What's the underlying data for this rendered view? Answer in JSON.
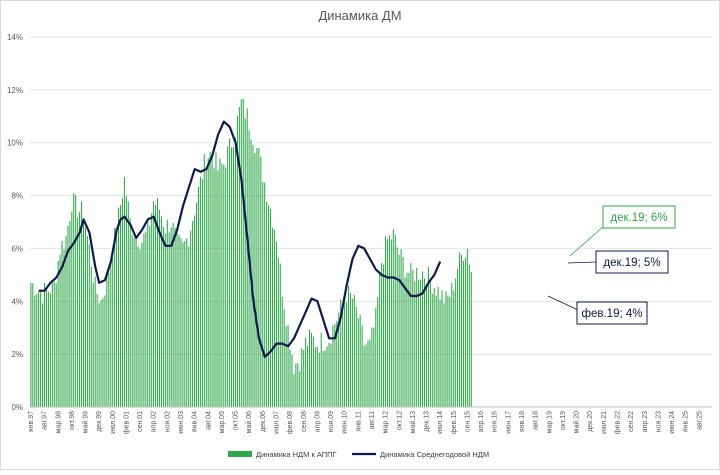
{
  "chart_data": {
    "type": "bar",
    "title": "Динамика ДМ",
    "y_ticks": [
      "0%",
      "2%",
      "4%",
      "6%",
      "8%",
      "10%",
      "12%",
      "14%"
    ],
    "ylim": [
      0,
      14
    ],
    "grid": true,
    "legend_position": "bottom",
    "x_tick_labels": [
      "янв.97",
      "авг.97",
      "мар.98",
      "окт.98",
      "май.99",
      "дек.99",
      "июл.00",
      "фев.01",
      "сен.01",
      "апр.02",
      "ноя.02",
      "июн.03",
      "янв.04",
      "авг.04",
      "мар.05",
      "окт.05",
      "май.06",
      "дек.06",
      "июл.07",
      "фев.08",
      "сен.08",
      "апр.09",
      "ноя.09",
      "июн.10",
      "янв.11",
      "авг.11",
      "мар.12",
      "окт.12",
      "май.13",
      "дек.13",
      "июл.14",
      "фев.15",
      "сен.15",
      "апр.16",
      "ноя.16",
      "июн.17",
      "янв.18",
      "авг.18",
      "мар.19",
      "окт.19",
      "май.20",
      "дек.20",
      "июл.21",
      "фев.22",
      "сен.22",
      "апр.23",
      "ноя.23",
      "июн.24",
      "янв.25",
      "авг.25"
    ],
    "series": [
      {
        "name": "Динамика НДМ к АППГ",
        "kind": "bar",
        "color": "#2ea84a",
        "x_start": "янв.97",
        "step": "month",
        "anchors": [
          [
            0,
            4.7
          ],
          [
            6,
            4.3
          ],
          [
            12,
            4.6
          ],
          [
            15,
            6.0
          ],
          [
            18,
            6.4
          ],
          [
            21,
            7.8
          ],
          [
            24,
            7.5
          ],
          [
            27,
            7.3
          ],
          [
            30,
            6.0
          ],
          [
            33,
            4.5
          ],
          [
            36,
            4.0
          ],
          [
            39,
            4.8
          ],
          [
            42,
            6.0
          ],
          [
            45,
            7.2
          ],
          [
            48,
            8.6
          ],
          [
            51,
            7.0
          ],
          [
            54,
            6.5
          ],
          [
            57,
            6.3
          ],
          [
            60,
            6.6
          ],
          [
            63,
            7.8
          ],
          [
            66,
            7.5
          ],
          [
            69,
            6.8
          ],
          [
            72,
            7.0
          ],
          [
            75,
            6.2
          ],
          [
            78,
            6.0
          ],
          [
            81,
            6.5
          ],
          [
            84,
            7.5
          ],
          [
            87,
            8.5
          ],
          [
            90,
            9.5
          ],
          [
            93,
            9.6
          ],
          [
            96,
            9.0
          ],
          [
            99,
            9.2
          ],
          [
            102,
            9.8
          ],
          [
            105,
            10.5
          ],
          [
            108,
            11.5
          ],
          [
            111,
            11.0
          ],
          [
            114,
            10.3
          ],
          [
            117,
            9.5
          ],
          [
            120,
            8.5
          ],
          [
            123,
            7.5
          ],
          [
            126,
            6.5
          ],
          [
            129,
            4.5
          ],
          [
            132,
            3.0
          ],
          [
            135,
            1.6
          ],
          [
            138,
            1.8
          ],
          [
            141,
            2.4
          ],
          [
            144,
            2.6
          ],
          [
            147,
            2.4
          ],
          [
            150,
            2.5
          ],
          [
            153,
            2.6
          ],
          [
            156,
            3.2
          ],
          [
            159,
            3.7
          ],
          [
            162,
            4.3
          ],
          [
            165,
            4.1
          ],
          [
            168,
            3.4
          ],
          [
            171,
            2.4
          ],
          [
            174,
            2.3
          ],
          [
            177,
            3.3
          ],
          [
            180,
            5.5
          ],
          [
            183,
            6.3
          ],
          [
            186,
            6.5
          ],
          [
            189,
            5.8
          ],
          [
            192,
            5.3
          ],
          [
            195,
            5.0
          ],
          [
            198,
            5.1
          ],
          [
            201,
            5.1
          ],
          [
            204,
            4.9
          ],
          [
            207,
            4.6
          ],
          [
            210,
            4.3
          ],
          [
            213,
            4.0
          ],
          [
            216,
            4.4
          ],
          [
            219,
            5.3
          ],
          [
            222,
            5.9
          ],
          [
            224,
            6.0
          ],
          [
            226,
            5.2
          ]
        ]
      },
      {
        "name": "Динамика Среднегодовой НДМ",
        "kind": "line",
        "color": "#0d1b4c",
        "x_start": "янв.97",
        "step": "month",
        "anchors": [
          [
            4,
            4.4
          ],
          [
            7,
            4.4
          ],
          [
            10,
            4.7
          ],
          [
            13,
            4.9
          ],
          [
            16,
            5.3
          ],
          [
            19,
            5.9
          ],
          [
            22,
            6.2
          ],
          [
            25,
            6.6
          ],
          [
            27,
            7.1
          ],
          [
            30,
            6.6
          ],
          [
            33,
            5.3
          ],
          [
            35,
            4.7
          ],
          [
            38,
            4.8
          ],
          [
            41,
            5.5
          ],
          [
            44,
            6.7
          ],
          [
            46,
            7.1
          ],
          [
            48,
            7.2
          ],
          [
            51,
            6.9
          ],
          [
            54,
            6.4
          ],
          [
            57,
            6.7
          ],
          [
            60,
            7.1
          ],
          [
            63,
            7.2
          ],
          [
            66,
            6.6
          ],
          [
            69,
            6.1
          ],
          [
            72,
            6.1
          ],
          [
            75,
            6.7
          ],
          [
            78,
            7.6
          ],
          [
            81,
            8.3
          ],
          [
            84,
            9.0
          ],
          [
            87,
            8.9
          ],
          [
            90,
            9.0
          ],
          [
            93,
            9.5
          ],
          [
            96,
            10.3
          ],
          [
            99,
            10.8
          ],
          [
            102,
            10.6
          ],
          [
            105,
            10.0
          ],
          [
            108,
            8.6
          ],
          [
            111,
            6.4
          ],
          [
            114,
            4.1
          ],
          [
            117,
            2.6
          ],
          [
            120,
            1.9
          ],
          [
            123,
            2.1
          ],
          [
            126,
            2.4
          ],
          [
            129,
            2.4
          ],
          [
            132,
            2.3
          ],
          [
            135,
            2.6
          ],
          [
            138,
            3.1
          ],
          [
            141,
            3.6
          ],
          [
            144,
            4.1
          ],
          [
            147,
            4.0
          ],
          [
            150,
            3.3
          ],
          [
            153,
            2.6
          ],
          [
            156,
            2.6
          ],
          [
            159,
            3.4
          ],
          [
            162,
            4.6
          ],
          [
            165,
            5.6
          ],
          [
            168,
            6.1
          ],
          [
            171,
            6.0
          ],
          [
            174,
            5.6
          ],
          [
            177,
            5.2
          ],
          [
            180,
            5.0
          ],
          [
            183,
            4.9
          ],
          [
            186,
            4.9
          ],
          [
            189,
            4.8
          ],
          [
            192,
            4.5
          ],
          [
            195,
            4.2
          ],
          [
            198,
            4.2
          ],
          [
            201,
            4.3
          ],
          [
            204,
            4.7
          ],
          [
            207,
            5.0
          ],
          [
            210,
            5.5
          ]
        ]
      }
    ],
    "annotations": [
      {
        "text": "дек.19; 6%",
        "color": "#2ea84a"
      },
      {
        "text": "дек.19; 5%",
        "color": "#0d1b4c"
      },
      {
        "text": "фев.19; 4%",
        "color": "#0d1b4c"
      }
    ]
  }
}
